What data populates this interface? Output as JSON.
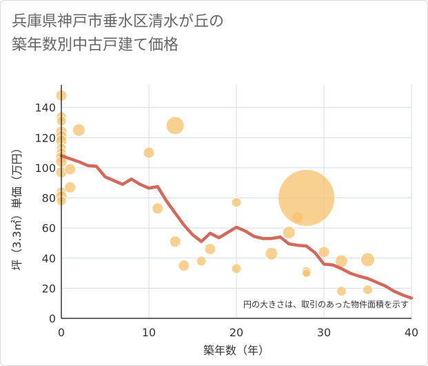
{
  "title_lines": [
    "兵庫県神戸市垂水区清水が丘の",
    "築年数別中古戸建て価格"
  ],
  "note": "円の大きさは、取引のあった物件面積を示す",
  "colors": {
    "bubble": "#f5c26b",
    "line": "#d2695a",
    "grid": "#d0dce8",
    "axis": "#333333"
  },
  "chart_data": {
    "type": "scatter",
    "xlabel": "築年数（年）",
    "ylabel": "坪（3.3㎡）単価（万円）",
    "xlim": [
      0,
      40
    ],
    "ylim": [
      0,
      155
    ],
    "xticks": [
      0,
      10,
      20,
      30,
      40
    ],
    "yticks": [
      0,
      20,
      40,
      60,
      80,
      100,
      120,
      140
    ],
    "scatter": [
      {
        "x": 0,
        "y": 148,
        "r": 8
      },
      {
        "x": 0,
        "y": 134,
        "r": 7
      },
      {
        "x": 0,
        "y": 131,
        "r": 7
      },
      {
        "x": 0,
        "y": 124,
        "r": 8
      },
      {
        "x": 0,
        "y": 121,
        "r": 8
      },
      {
        "x": 0,
        "y": 118,
        "r": 8
      },
      {
        "x": 0,
        "y": 113,
        "r": 7
      },
      {
        "x": 0,
        "y": 110,
        "r": 7
      },
      {
        "x": 0,
        "y": 107,
        "r": 8
      },
      {
        "x": 0,
        "y": 104,
        "r": 8
      },
      {
        "x": 0,
        "y": 97,
        "r": 8
      },
      {
        "x": 0,
        "y": 84,
        "r": 7
      },
      {
        "x": 0,
        "y": 81,
        "r": 8
      },
      {
        "x": 0,
        "y": 78,
        "r": 7
      },
      {
        "x": 1,
        "y": 99,
        "r": 8
      },
      {
        "x": 1,
        "y": 87,
        "r": 8
      },
      {
        "x": 2,
        "y": 125,
        "r": 9
      },
      {
        "x": 10,
        "y": 110,
        "r": 8
      },
      {
        "x": 11,
        "y": 73,
        "r": 8
      },
      {
        "x": 13,
        "y": 128,
        "r": 13
      },
      {
        "x": 13,
        "y": 51,
        "r": 8
      },
      {
        "x": 14,
        "y": 35,
        "r": 8
      },
      {
        "x": 16,
        "y": 38,
        "r": 7
      },
      {
        "x": 17,
        "y": 46,
        "r": 8
      },
      {
        "x": 20,
        "y": 77,
        "r": 7
      },
      {
        "x": 20,
        "y": 33,
        "r": 7
      },
      {
        "x": 24,
        "y": 43,
        "r": 9
      },
      {
        "x": 26,
        "y": 57,
        "r": 9
      },
      {
        "x": 27,
        "y": 67,
        "r": 8
      },
      {
        "x": 28,
        "y": 80,
        "r": 41
      },
      {
        "x": 28,
        "y": 31,
        "r": 7
      },
      {
        "x": 28,
        "y": 30,
        "r": 6
      },
      {
        "x": 30,
        "y": 44,
        "r": 8
      },
      {
        "x": 32,
        "y": 38,
        "r": 9
      },
      {
        "x": 32,
        "y": 18,
        "r": 7
      },
      {
        "x": 35,
        "y": 39,
        "r": 10
      },
      {
        "x": 35,
        "y": 19,
        "r": 7
      }
    ],
    "line": {
      "x": [
        0,
        1,
        2,
        3,
        4,
        5,
        6,
        7,
        8,
        9,
        10,
        11,
        12,
        13,
        14,
        15,
        16,
        17,
        18,
        19,
        20,
        21,
        22,
        23,
        24,
        25,
        26,
        27,
        28,
        29,
        30,
        31,
        32,
        33,
        34,
        35,
        36,
        37,
        38,
        39,
        40
      ],
      "y": [
        108,
        106,
        104,
        101.5,
        101,
        94,
        91.5,
        89,
        92.5,
        89,
        86.5,
        87.5,
        78,
        70,
        62,
        55.5,
        51,
        56.5,
        53.5,
        57,
        60.5,
        58,
        54.5,
        53,
        53,
        54,
        49.5,
        48.5,
        48,
        43.5,
        36,
        35.5,
        33,
        30,
        28,
        26.5,
        24,
        21.5,
        18,
        15.5,
        13.5
      ]
    }
  }
}
